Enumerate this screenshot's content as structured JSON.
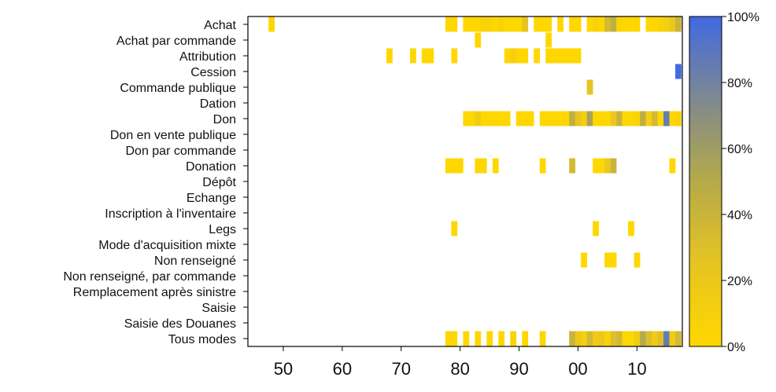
{
  "chart_data": {
    "type": "heatmap",
    "title": "",
    "xlabel": "",
    "ylabel": "",
    "x_range": [
      1944,
      2017
    ],
    "x_ticks": [
      1950,
      1960,
      1970,
      1980,
      1990,
      2000,
      2010
    ],
    "x_tick_labels": [
      "50",
      "60",
      "70",
      "80",
      "90",
      "00",
      "10"
    ],
    "rows": [
      "Achat",
      "Achat par commande",
      "Attribution",
      "Cession",
      "Commande publique",
      "Dation",
      "Don",
      "Don en vente publique",
      "Don par commande",
      "Donation",
      "Dépôt",
      "Echange",
      "Inscription à l'inventaire",
      "Legs",
      "Mode d'acquisition mixte",
      "Non renseigné",
      "Non renseigné, par commande",
      "Remplacement après sinistre",
      "Saisie",
      "Saisie des Douanes",
      "Tous modes"
    ],
    "colorbar": {
      "min_color": "#FFD700",
      "max_color": "#4169E1",
      "tick_labels": [
        "0%",
        "20%",
        "40%",
        "60%",
        "80%",
        "100%"
      ]
    },
    "cells": {
      "Achat": [
        [
          1948,
          0
        ],
        [
          1978,
          0
        ],
        [
          1979,
          0
        ],
        [
          1981,
          0
        ],
        [
          1982,
          0
        ],
        [
          1983,
          0
        ],
        [
          1984,
          0.05
        ],
        [
          1985,
          0.05
        ],
        [
          1986,
          0
        ],
        [
          1987,
          0.05
        ],
        [
          1988,
          0
        ],
        [
          1989,
          0
        ],
        [
          1990,
          0
        ],
        [
          1991,
          0.25
        ],
        [
          1993,
          0
        ],
        [
          1994,
          0
        ],
        [
          1995,
          0
        ],
        [
          1997,
          0
        ],
        [
          1999,
          0
        ],
        [
          2000,
          0
        ],
        [
          2002,
          0
        ],
        [
          2003,
          0.05
        ],
        [
          2004,
          0
        ],
        [
          2005,
          0.35
        ],
        [
          2006,
          0.45
        ],
        [
          2007,
          0.05
        ],
        [
          2008,
          0
        ],
        [
          2009,
          0
        ],
        [
          2010,
          0
        ],
        [
          2012,
          0
        ],
        [
          2013,
          0
        ],
        [
          2014,
          0.05
        ],
        [
          2015,
          0.1
        ],
        [
          2016,
          0.2
        ],
        [
          2017,
          0.4
        ]
      ],
      "Achat par commande": [
        [
          1983,
          0
        ],
        [
          1995,
          0
        ]
      ],
      "Attribution": [
        [
          1968,
          0
        ],
        [
          1972,
          0
        ],
        [
          1974,
          0
        ],
        [
          1975,
          0
        ],
        [
          1979,
          0
        ],
        [
          1988,
          0
        ],
        [
          1989,
          0.1
        ],
        [
          1990,
          0
        ],
        [
          1991,
          0
        ],
        [
          1993,
          0
        ],
        [
          1995,
          0
        ],
        [
          1996,
          0
        ],
        [
          1997,
          0
        ],
        [
          1998,
          0
        ],
        [
          1999,
          0
        ],
        [
          2000,
          0
        ]
      ],
      "Cession": [
        [
          2017,
          1
        ]
      ],
      "Commande publique": [
        [
          2002,
          0.25
        ]
      ],
      "Dation": [],
      "Don": [
        [
          1981,
          0
        ],
        [
          1982,
          0
        ],
        [
          1983,
          0.15
        ],
        [
          1984,
          0
        ],
        [
          1985,
          0
        ],
        [
          1986,
          0
        ],
        [
          1987,
          0
        ],
        [
          1988,
          0
        ],
        [
          1990,
          0
        ],
        [
          1991,
          0
        ],
        [
          1992,
          0
        ],
        [
          1994,
          0
        ],
        [
          1995,
          0
        ],
        [
          1996,
          0
        ],
        [
          1997,
          0
        ],
        [
          1998,
          0
        ],
        [
          1999,
          0.45
        ],
        [
          2000,
          0.25
        ],
        [
          2001,
          0.1
        ],
        [
          2002,
          0.55
        ],
        [
          2003,
          0
        ],
        [
          2004,
          0
        ],
        [
          2005,
          0
        ],
        [
          2006,
          0.2
        ],
        [
          2007,
          0.4
        ],
        [
          2008,
          0
        ],
        [
          2009,
          0
        ],
        [
          2010,
          0.05
        ],
        [
          2011,
          0.45
        ],
        [
          2012,
          0.1
        ],
        [
          2013,
          0.35
        ],
        [
          2014,
          0
        ],
        [
          2015,
          0.85
        ],
        [
          2016,
          0
        ],
        [
          2017,
          0.05
        ]
      ],
      "Don en vente publique": [],
      "Don par commande": [],
      "Donation": [
        [
          1978,
          0
        ],
        [
          1979,
          0
        ],
        [
          1980,
          0
        ],
        [
          1983,
          0
        ],
        [
          1984,
          0
        ],
        [
          1986,
          0
        ],
        [
          1994,
          0
        ],
        [
          1999,
          0.35
        ],
        [
          2003,
          0
        ],
        [
          2004,
          0
        ],
        [
          2005,
          0.2
        ],
        [
          2006,
          0.4
        ],
        [
          2016,
          0
        ]
      ],
      "Dépôt": [],
      "Echange": [],
      "Inscription à l'inventaire": [],
      "Legs": [
        [
          1979,
          0
        ],
        [
          2003,
          0
        ],
        [
          2009,
          0
        ]
      ],
      "Mode d'acquisition mixte": [],
      "Non renseigné": [
        [
          2001,
          0
        ],
        [
          2005,
          0
        ],
        [
          2006,
          0
        ],
        [
          2010,
          0
        ]
      ],
      "Non renseigné, par commande": [],
      "Remplacement après sinistre": [],
      "Saisie": [],
      "Saisie des Douanes": [],
      "Tous modes": [
        [
          1978,
          0
        ],
        [
          1979,
          0
        ],
        [
          1981,
          0
        ],
        [
          1983,
          0
        ],
        [
          1985,
          0
        ],
        [
          1987,
          0
        ],
        [
          1989,
          0.05
        ],
        [
          1991,
          0
        ],
        [
          1994,
          0
        ],
        [
          1999,
          0.4
        ],
        [
          2000,
          0.2
        ],
        [
          2001,
          0.1
        ],
        [
          2002,
          0.35
        ],
        [
          2003,
          0.15
        ],
        [
          2004,
          0.2
        ],
        [
          2005,
          0.05
        ],
        [
          2006,
          0.3
        ],
        [
          2007,
          0.35
        ],
        [
          2008,
          0
        ],
        [
          2009,
          0
        ],
        [
          2010,
          0.15
        ],
        [
          2011,
          0.5
        ],
        [
          2012,
          0.3
        ],
        [
          2013,
          0.15
        ],
        [
          2014,
          0.3
        ],
        [
          2015,
          0.85
        ],
        [
          2016,
          0.15
        ],
        [
          2017,
          0.35
        ]
      ]
    }
  }
}
